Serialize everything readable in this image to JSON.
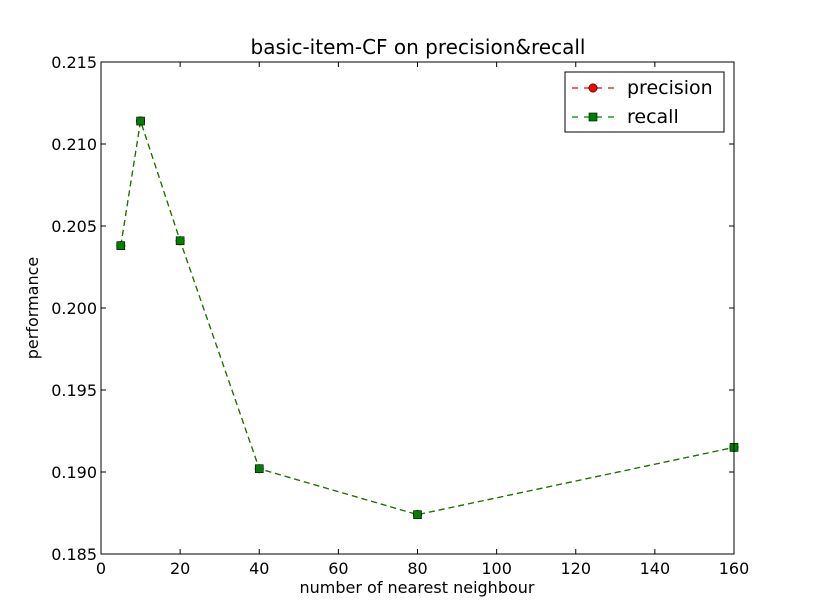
{
  "chart_data": {
    "type": "line",
    "title": "basic-item-CF on precision&recall",
    "xlabel": "number of nearest neighbour",
    "ylabel": "performance",
    "xlim": [
      0,
      160
    ],
    "ylim": [
      0.185,
      0.215
    ],
    "xticks": [
      "0",
      "20",
      "40",
      "60",
      "80",
      "100",
      "120",
      "140",
      "160"
    ],
    "yticks": [
      "0.185",
      "0.190",
      "0.195",
      "0.200",
      "0.205",
      "0.210",
      "0.215"
    ],
    "grid": false,
    "legend_position": "top-right",
    "x": [
      5,
      10,
      20,
      40,
      80,
      160
    ],
    "series": [
      {
        "name": "precision",
        "color": "#ff0000",
        "marker": "circle",
        "linestyle": "dashed",
        "values": [
          0.2038,
          0.2114,
          0.2041,
          0.1902,
          0.1874,
          0.1915
        ]
      },
      {
        "name": "recall",
        "color": "#008000",
        "marker": "square",
        "linestyle": "dashed",
        "values": [
          0.2038,
          0.2114,
          0.2041,
          0.1902,
          0.1874,
          0.1915
        ]
      }
    ]
  }
}
